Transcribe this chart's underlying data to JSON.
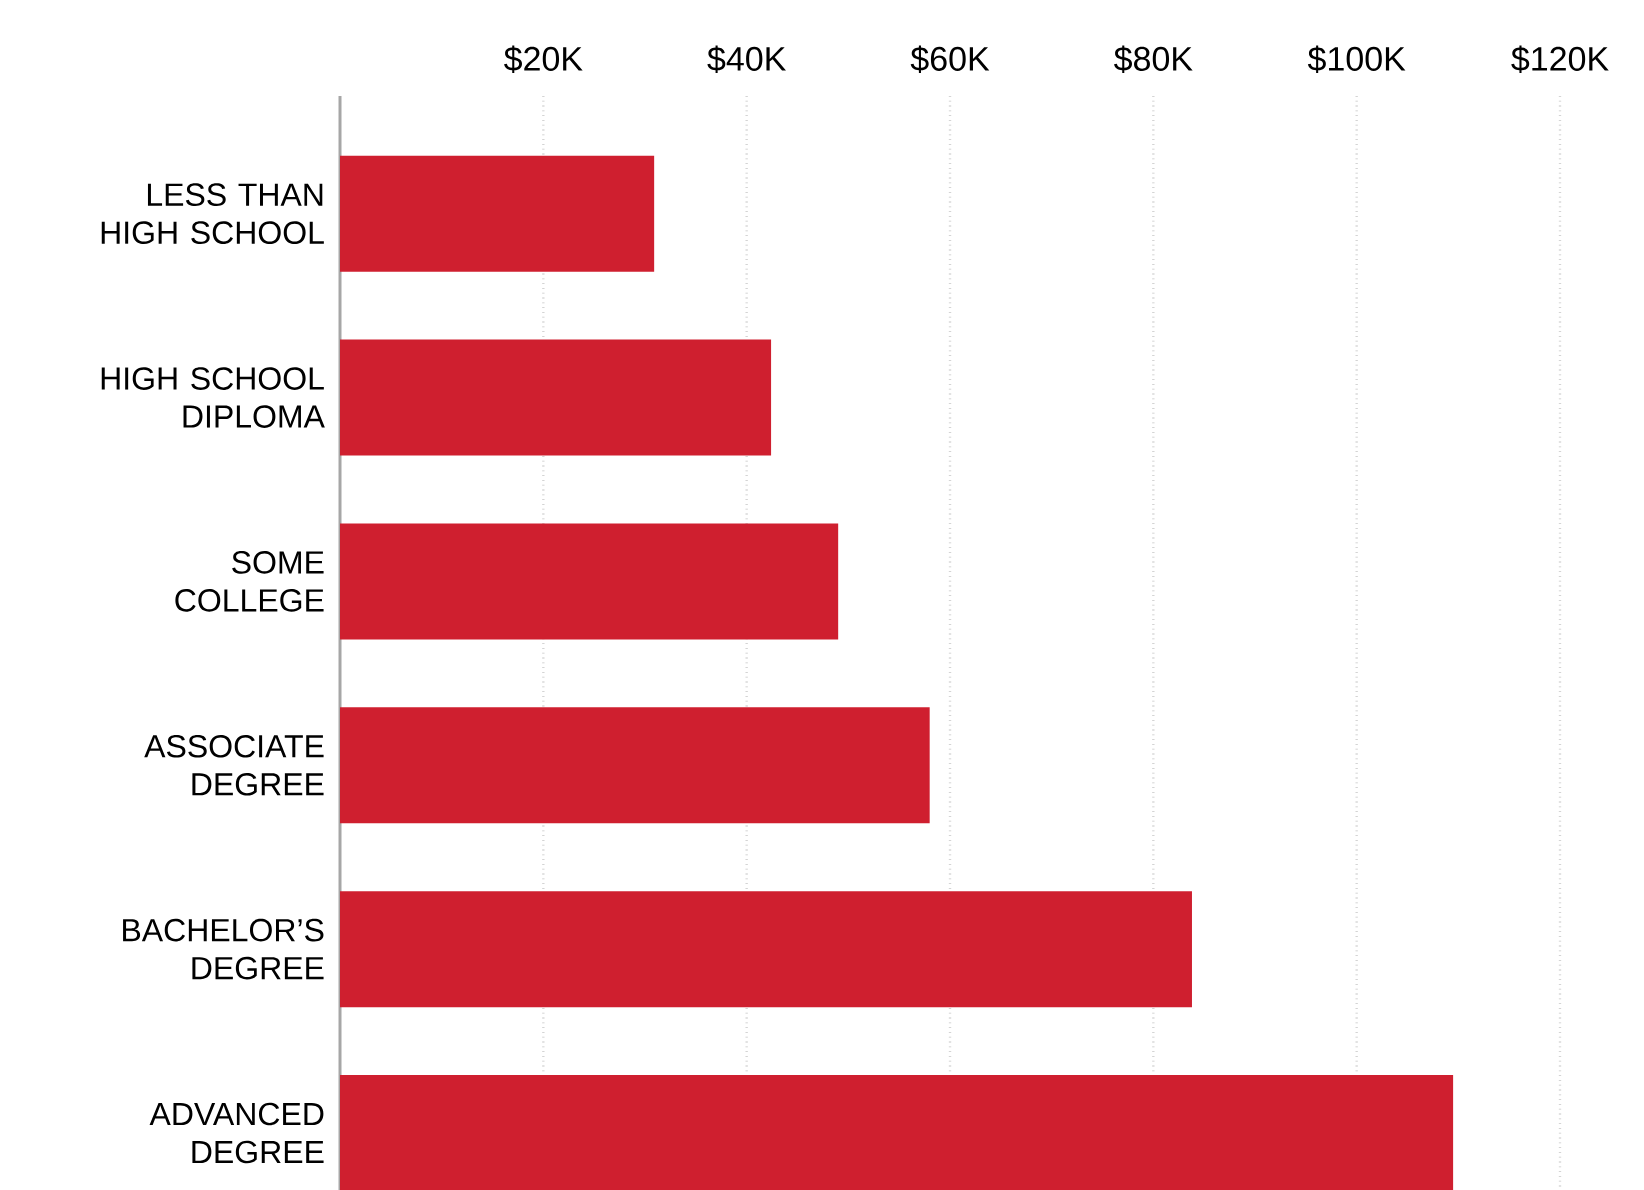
{
  "chart_data": {
    "type": "bar",
    "orientation": "horizontal",
    "categories": [
      "LESS THAN HIGH SCHOOL",
      "HIGH SCHOOL DIPLOMA",
      "SOME COLLEGE",
      "ASSOCIATE DEGREE",
      "BACHELOR’S DEGREE",
      "ADVANCED DEGREE"
    ],
    "values": [
      30.9,
      42.4,
      49.0,
      58.0,
      83.8,
      109.5
    ],
    "color": "#cf1f2f",
    "xlim": [
      0,
      120
    ],
    "xticks": [
      {
        "value": 20,
        "label": "$20K"
      },
      {
        "value": 40,
        "label": "$40K"
      },
      {
        "value": 60,
        "label": "$60K"
      },
      {
        "value": 80,
        "label": "$80K"
      },
      {
        "value": 100,
        "label": "$100K"
      },
      {
        "value": 120,
        "label": "$120K"
      }
    ],
    "grid": "x"
  }
}
